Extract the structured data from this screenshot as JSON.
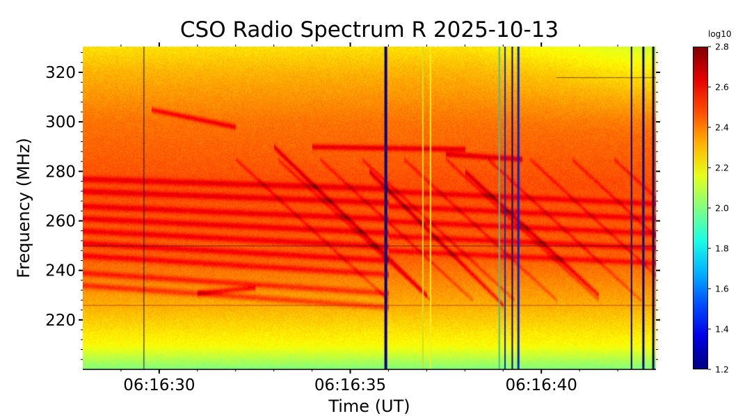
{
  "chart_data": {
    "type": "heatmap",
    "title": "CSO Radio Spectrum R 2025-10-13",
    "xlabel": "Time (UT)",
    "ylabel": "Frequency (MHz)",
    "x_tick_labels": [
      "06:16:30",
      "06:16:35",
      "06:16:40"
    ],
    "x_tick_seconds": [
      30,
      35,
      40
    ],
    "xlim_seconds_after_06_16": [
      28.0,
      43.0
    ],
    "y_ticks": [
      220,
      240,
      260,
      280,
      300,
      320
    ],
    "ylim": [
      200,
      330.4
    ],
    "colorbar": {
      "label": "log10",
      "range": [
        1.2,
        2.8
      ],
      "ticks": [
        "1.2",
        "1.4",
        "1.6",
        "1.8",
        "2.0",
        "2.2",
        "2.4",
        "2.6",
        "2.8"
      ],
      "colormap": "jet"
    },
    "background_level_by_freq": [
      {
        "freq": 200,
        "value": 2.0
      },
      {
        "freq": 210,
        "value": 2.2
      },
      {
        "freq": 225,
        "value": 2.32
      },
      {
        "freq": 245,
        "value": 2.45
      },
      {
        "freq": 275,
        "value": 2.48
      },
      {
        "freq": 300,
        "value": 2.42
      },
      {
        "freq": 320,
        "value": 2.32
      },
      {
        "freq": 330,
        "value": 2.25
      }
    ],
    "drifting_features": [
      {
        "t0": 29.8,
        "f0": 305,
        "t1": 32.0,
        "f1": 298
      },
      {
        "t0": 34.0,
        "f0": 290,
        "t1": 38.0,
        "f1": 289
      },
      {
        "t0": 37.5,
        "f0": 287,
        "t1": 39.5,
        "f1": 285
      },
      {
        "t0": 31.0,
        "f0": 231,
        "t1": 32.5,
        "f1": 233
      },
      {
        "t0": 33.0,
        "f0": 290,
        "t1": 37.0,
        "f1": 230
      },
      {
        "t0": 35.5,
        "f0": 280,
        "t1": 39.0,
        "f1": 226
      },
      {
        "t0": 38.0,
        "f0": 280,
        "t1": 41.5,
        "f1": 230
      }
    ],
    "vertical_interference_seconds": [
      29.6,
      35.93,
      36.9,
      37.1,
      38.9,
      39.05,
      39.24,
      39.4,
      42.36,
      42.67,
      42.93
    ],
    "horizontal_lines_mhz": [
      226,
      250,
      318
    ]
  }
}
